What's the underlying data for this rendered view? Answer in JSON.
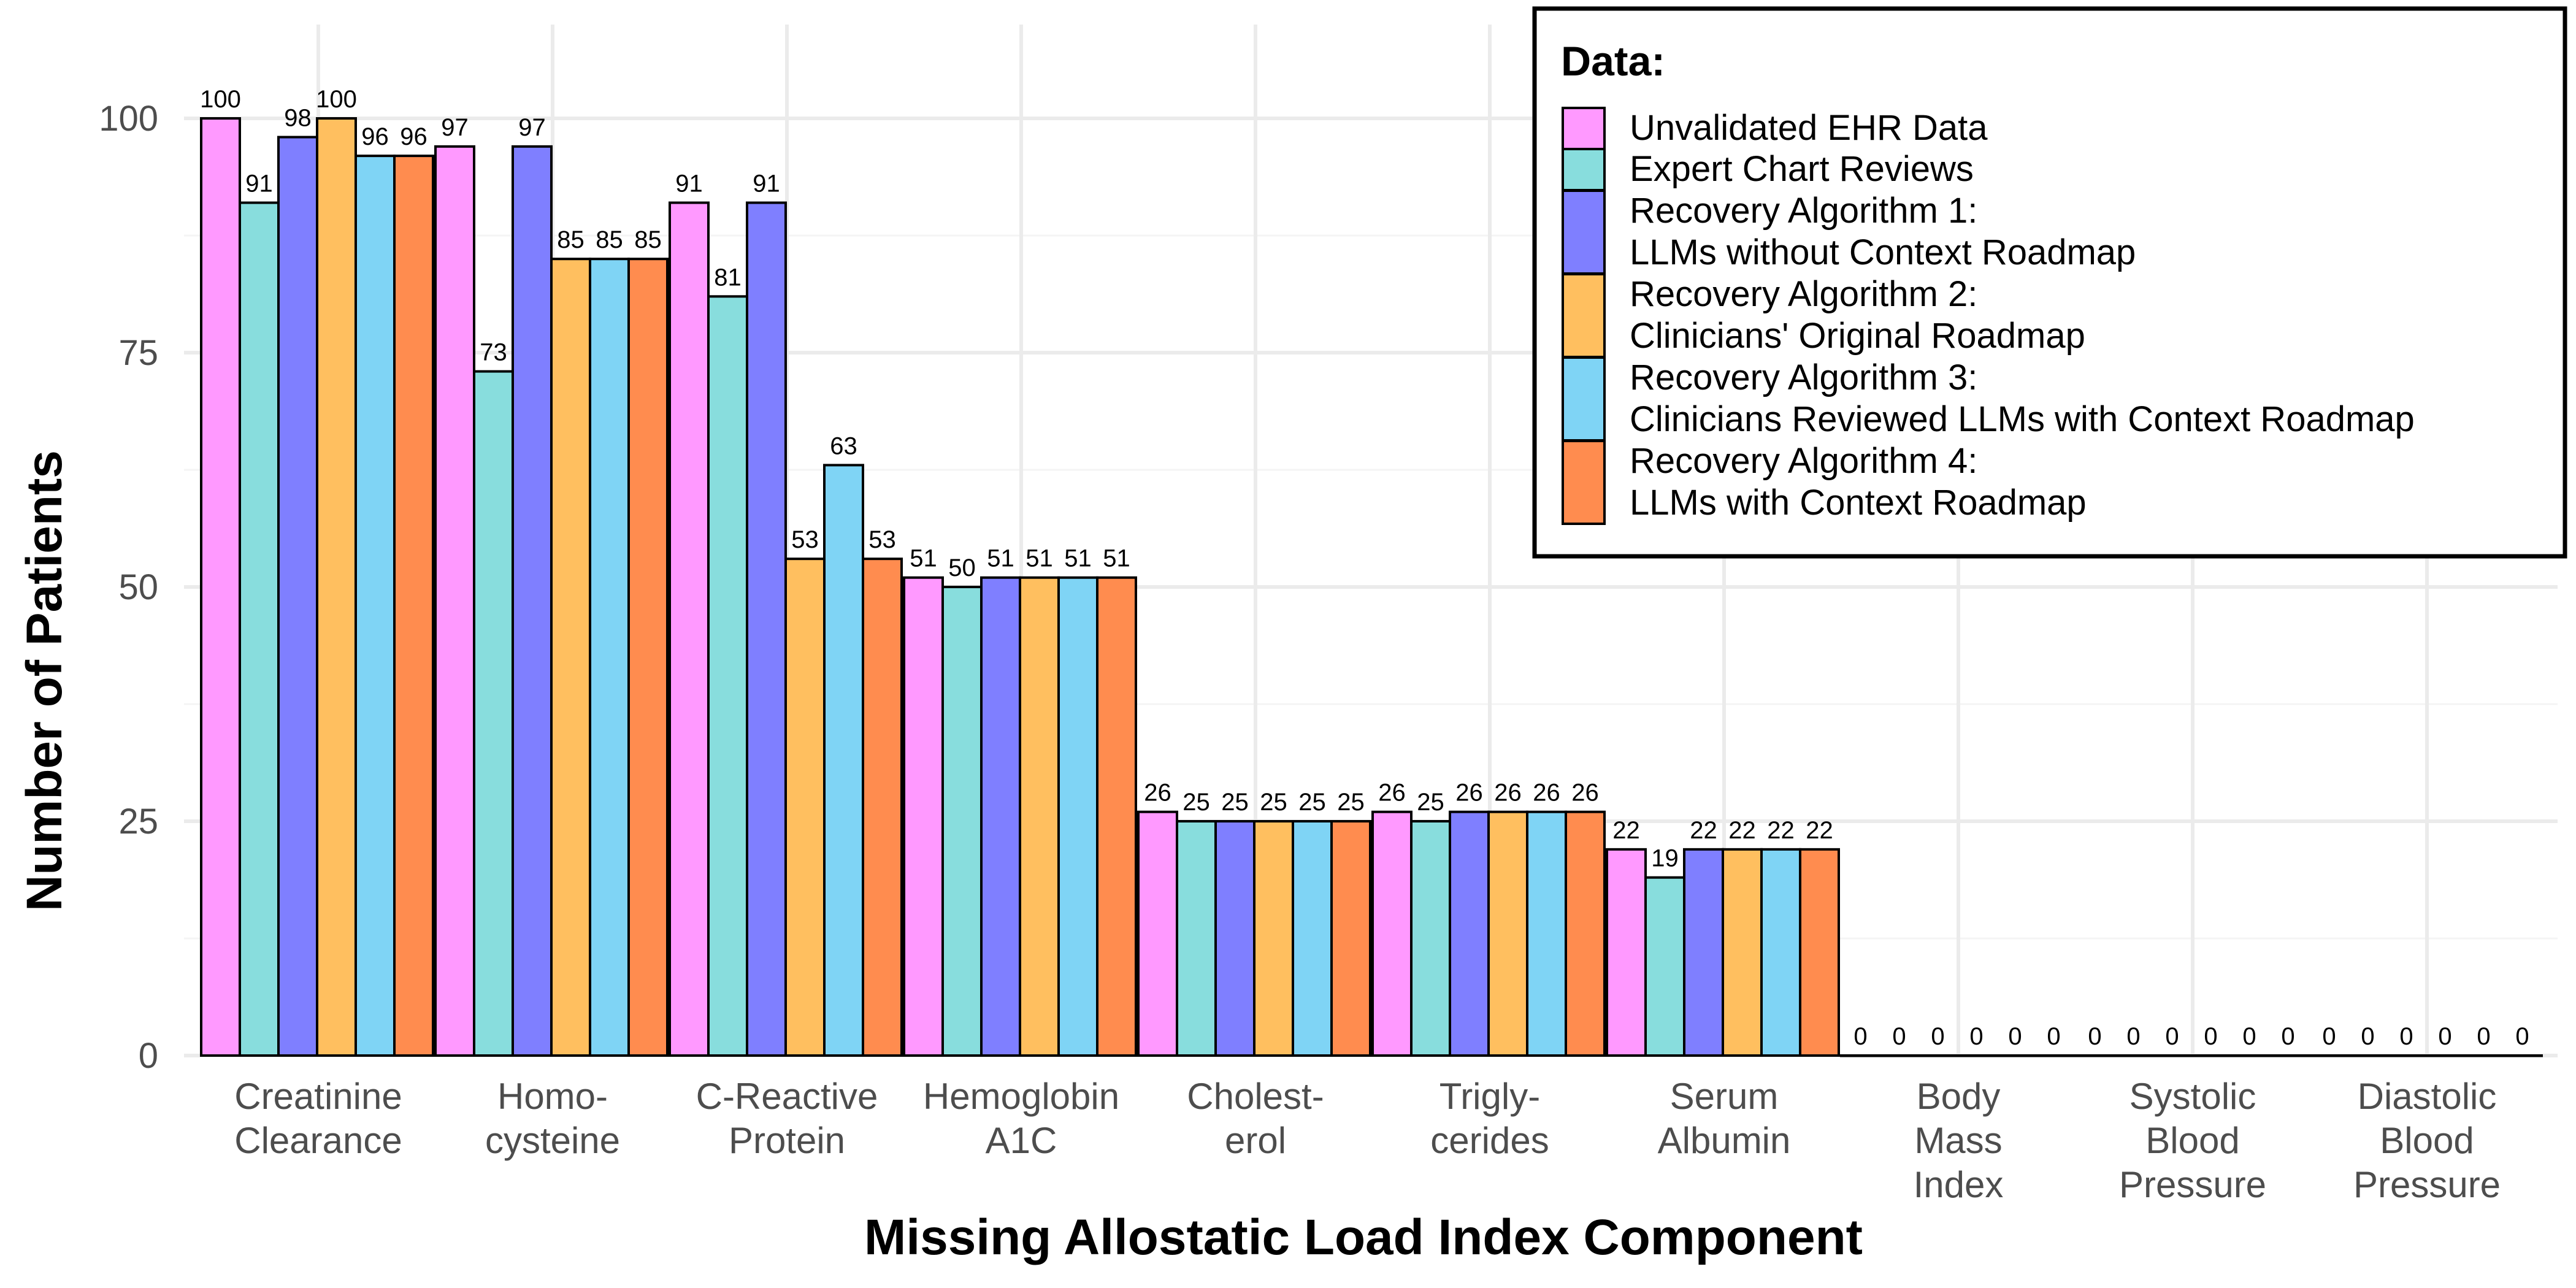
{
  "chart_data": {
    "type": "bar",
    "title": "",
    "xlabel": "Missing Allostatic Load Index Component",
    "ylabel": "Number of Patients",
    "ylim": [
      0,
      105
    ],
    "yticks": [
      0,
      25,
      50,
      75,
      100
    ],
    "grid": true,
    "legend_position": "top-right",
    "legend_title": "Data:",
    "categories": [
      [
        "Creatinine",
        "Clearance"
      ],
      [
        "Homo-",
        "cysteine"
      ],
      [
        "C-Reactive",
        "Protein"
      ],
      [
        "Hemoglobin",
        "A1C"
      ],
      [
        "Cholest-",
        "erol"
      ],
      [
        "Trigly-",
        "cerides"
      ],
      [
        "Serum",
        "Albumin"
      ],
      [
        "Body",
        "Mass",
        "Index"
      ],
      [
        "Systolic",
        "Blood",
        "Pressure"
      ],
      [
        "Diastolic",
        "Blood",
        "Pressure"
      ]
    ],
    "series": [
      {
        "name": [
          "Unvalidated EHR Data"
        ],
        "color": "#FF99FF",
        "values": [
          100,
          97,
          91,
          51,
          26,
          26,
          22,
          0,
          0,
          0
        ]
      },
      {
        "name": [
          "Expert Chart Reviews"
        ],
        "color": "#88DDDD",
        "values": [
          91,
          73,
          81,
          50,
          25,
          25,
          19,
          0,
          0,
          0
        ]
      },
      {
        "name": [
          "Recovery Algorithm 1:",
          "LLMs without Context Roadmap"
        ],
        "color": "#7F7FFF",
        "values": [
          98,
          97,
          91,
          51,
          25,
          26,
          22,
          0,
          0,
          0
        ]
      },
      {
        "name": [
          "Recovery Algorithm 2:",
          "Clinicians' Original Roadmap"
        ],
        "color": "#FFBF5F",
        "values": [
          100,
          85,
          53,
          51,
          25,
          26,
          22,
          0,
          0,
          0
        ]
      },
      {
        "name": [
          "Recovery Algorithm 3:",
          "Clinicians Reviewed LLMs with Context Roadmap"
        ],
        "color": "#7FD4F5",
        "values": [
          96,
          85,
          63,
          51,
          25,
          26,
          22,
          0,
          0,
          0
        ]
      },
      {
        "name": [
          "Recovery Algorithm 4:",
          "LLMs with Context Roadmap"
        ],
        "color": "#FF8C4F",
        "values": [
          96,
          85,
          53,
          51,
          25,
          26,
          22,
          0,
          0,
          0
        ]
      }
    ]
  }
}
